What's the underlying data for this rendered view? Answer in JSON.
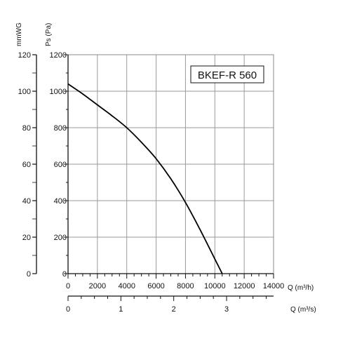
{
  "chart_data": {
    "type": "line",
    "title": "BKEF-R 560",
    "y_axes": {
      "left_outer": {
        "label": "mmWG",
        "range": [
          0,
          120
        ],
        "ticks": [
          0,
          20,
          40,
          60,
          80,
          100,
          120
        ]
      },
      "left_inner": {
        "label": "Ps (Pa)",
        "range": [
          0,
          1200
        ],
        "ticks": [
          0,
          200,
          400,
          600,
          800,
          1000,
          1200
        ]
      }
    },
    "x_axes": {
      "primary": {
        "label": "Q (m³/h)",
        "range": [
          0,
          14000
        ],
        "ticks": [
          0,
          2000,
          4000,
          6000,
          8000,
          10000,
          12000,
          14000
        ]
      },
      "secondary": {
        "label": "Q (m³/s)",
        "range": [
          0,
          3.8889
        ],
        "ticks": [
          0,
          1,
          2,
          3
        ]
      }
    },
    "grid": true,
    "series": [
      {
        "x": [
          0,
          1000,
          2000,
          3000,
          4000,
          5000,
          6000,
          7000,
          8000,
          9000,
          10000,
          10500
        ],
        "y": [
          1040,
          985,
          925,
          865,
          800,
          720,
          630,
          520,
          390,
          240,
          80,
          0
        ]
      }
    ]
  }
}
